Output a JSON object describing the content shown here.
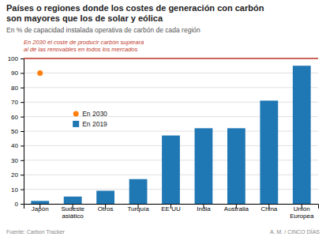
{
  "chart_data": {
    "type": "bar",
    "title": "Países o regiones donde los costes de generación con carbón\nson mayores que los de solar y eólica",
    "subtitle": "En % de capacidad instalada operativa de carbón de cada región",
    "categories": [
      "Japón",
      "Sudeste\nasiático",
      "Otros",
      "Turquía",
      "EE UU",
      "India",
      "Australia",
      "China",
      "Unión\nEuropea"
    ],
    "series": [
      {
        "name": "En 2019",
        "values": [
          2,
          5,
          9,
          17,
          47,
          52,
          52,
          71,
          95
        ]
      },
      {
        "name": "En 2030",
        "type": "scatter",
        "marker": "circle",
        "values": [
          90,
          null,
          null,
          null,
          null,
          null,
          null,
          null,
          null
        ]
      }
    ],
    "ylim": [
      0,
      100
    ],
    "yticks": [
      0,
      10,
      20,
      30,
      40,
      50,
      60,
      70,
      80,
      90,
      100
    ],
    "grid": true,
    "legend": "center left",
    "reference_line": {
      "value": 100,
      "color": "#c0392b",
      "label": "En 2030 el coste de producir carbón superará\nal de las renovables en todos los mercados"
    },
    "source": "Fuente: Carbon Tracker",
    "credit": "A. M. / CINCO DÍAS"
  }
}
